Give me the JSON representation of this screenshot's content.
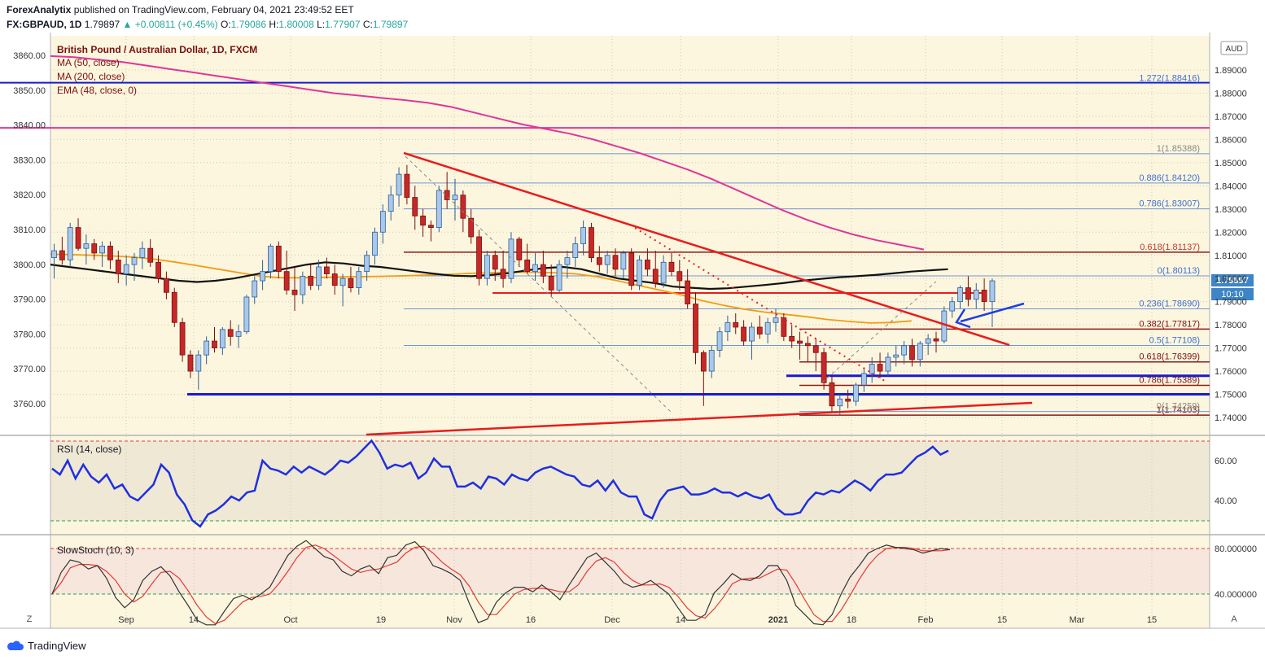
{
  "header": {
    "publisher": "ForexAnalytix",
    "published_text": "published on TradingView.com, February 04, 2021 23:49:52 EET",
    "symbol": "FX:GBPAUD, 1D",
    "last": "1.79897",
    "change": "+0.00811 (+0.45%)",
    "o_label": "O:",
    "o": "1.79086",
    "h_label": "H:",
    "h": "1.80008",
    "l_label": "L:",
    "l": "1.77907",
    "c_label": "C:",
    "c": "1.79897"
  },
  "legend": {
    "title": "British Pound / Australian Dollar, 1D, FXCM",
    "ma50": "MA (50, close)",
    "ma200": "MA (200, close)",
    "ema48": "EMA (48, close, 0)",
    "rsi": "RSI (14, close)",
    "stoch": "SlowStoch (10, 3)"
  },
  "axis": {
    "currency": "AUD",
    "price_badge": "1.79897",
    "time_badge": "10:10",
    "left_ticks": [
      "3860.00",
      "3850.00",
      "3840.00",
      "3830.00",
      "3820.00",
      "3810.00",
      "3800.00",
      "3790.00",
      "3780.00",
      "3770.00",
      "3760.00"
    ],
    "right_ticks": [
      "1.89000",
      "1.88000",
      "1.87000",
      "1.86000",
      "1.85000",
      "1.84000",
      "1.83000",
      "1.82000",
      "1.81000",
      "1.80000",
      "1.79000",
      "1.78000",
      "1.77000",
      "1.76000",
      "1.75000",
      "1.74000"
    ],
    "rsi_ticks": [
      "60.00",
      "40.00"
    ],
    "stoch_ticks": [
      "80.000000",
      "40.000000"
    ],
    "x_labels": [
      "Sep",
      "14",
      "Oct",
      "19",
      "Nov",
      "16",
      "Dec",
      "14",
      "2021",
      "18",
      "Feb",
      "15",
      "Mar",
      "15"
    ],
    "corner_left": "Z",
    "corner_right": "A"
  },
  "fib_labels": [
    "1.272(1.88416)",
    "1(1.85388)",
    "0.886(1.84120)",
    "0.786(1.83007)",
    "0.618(1.81137)",
    "0(1.80113)",
    "0.236(1.78690)",
    "0.382(1.77817)",
    "0.5(1.77108)",
    "0.618(1.76399)",
    "0.786(1.75389)",
    "1(1.74103)",
    "0(1.74259)"
  ],
  "chart_data": {
    "type": "candlestick",
    "title": "British Pound / Australian Dollar, 1D, FXCM",
    "ylim": [
      1.7365,
      1.905
    ],
    "last_close": 1.79897,
    "fib_levels": [
      1.88416,
      1.85388,
      1.8412,
      1.83007,
      1.81137,
      1.80113,
      1.7869,
      1.77817,
      1.77108,
      1.76399,
      1.75389,
      1.74103,
      1.74259
    ],
    "horizontal_levels": [
      1.8845,
      1.865,
      1.75,
      1.758
    ],
    "ohlc": [
      [
        1.809,
        1.815,
        1.8,
        1.812
      ],
      [
        1.812,
        1.818,
        1.806,
        1.808
      ],
      [
        1.808,
        1.824,
        1.805,
        1.822
      ],
      [
        1.822,
        1.826,
        1.812,
        1.813
      ],
      [
        1.813,
        1.819,
        1.806,
        1.815
      ],
      [
        1.815,
        1.817,
        1.808,
        1.811
      ],
      [
        1.811,
        1.816,
        1.805,
        1.814
      ],
      [
        1.814,
        1.816,
        1.804,
        1.808
      ],
      [
        1.808,
        1.812,
        1.798,
        1.802
      ],
      [
        1.802,
        1.81,
        1.797,
        1.806
      ],
      [
        1.806,
        1.811,
        1.799,
        1.809
      ],
      [
        1.809,
        1.816,
        1.804,
        1.813
      ],
      [
        1.813,
        1.817,
        1.805,
        1.807
      ],
      [
        1.807,
        1.81,
        1.798,
        1.8
      ],
      [
        1.8,
        1.803,
        1.791,
        1.794
      ],
      [
        1.794,
        1.796,
        1.779,
        1.781
      ],
      [
        1.781,
        1.783,
        1.764,
        1.767
      ],
      [
        1.767,
        1.769,
        1.757,
        1.76
      ],
      [
        1.76,
        1.769,
        1.752,
        1.767
      ],
      [
        1.767,
        1.775,
        1.763,
        1.773
      ],
      [
        1.773,
        1.779,
        1.768,
        1.77
      ],
      [
        1.77,
        1.779,
        1.767,
        1.778
      ],
      [
        1.778,
        1.782,
        1.771,
        1.775
      ],
      [
        1.775,
        1.78,
        1.77,
        1.777
      ],
      [
        1.777,
        1.793,
        1.776,
        1.792
      ],
      [
        1.792,
        1.801,
        1.789,
        1.799
      ],
      [
        1.799,
        1.808,
        1.795,
        1.803
      ],
      [
        1.803,
        1.815,
        1.8,
        1.814
      ],
      [
        1.814,
        1.816,
        1.8,
        1.803
      ],
      [
        1.803,
        1.812,
        1.793,
        1.795
      ],
      [
        1.795,
        1.805,
        1.786,
        1.793
      ],
      [
        1.793,
        1.803,
        1.789,
        1.801
      ],
      [
        1.801,
        1.806,
        1.795,
        1.797
      ],
      [
        1.797,
        1.808,
        1.795,
        1.805
      ],
      [
        1.805,
        1.809,
        1.8,
        1.802
      ],
      [
        1.802,
        1.806,
        1.793,
        1.797
      ],
      [
        1.797,
        1.802,
        1.788,
        1.8
      ],
      [
        1.8,
        1.805,
        1.794,
        1.796
      ],
      [
        1.796,
        1.805,
        1.793,
        1.803
      ],
      [
        1.803,
        1.812,
        1.799,
        1.81
      ],
      [
        1.81,
        1.822,
        1.806,
        1.82
      ],
      [
        1.82,
        1.832,
        1.815,
        1.829
      ],
      [
        1.829,
        1.84,
        1.825,
        1.836
      ],
      [
        1.836,
        1.848,
        1.831,
        1.845
      ],
      [
        1.845,
        1.849,
        1.832,
        1.835
      ],
      [
        1.835,
        1.84,
        1.821,
        1.827
      ],
      [
        1.827,
        1.83,
        1.818,
        1.823
      ],
      [
        1.823,
        1.825,
        1.816,
        1.822
      ],
      [
        1.822,
        1.84,
        1.82,
        1.838
      ],
      [
        1.838,
        1.846,
        1.83,
        1.834
      ],
      [
        1.834,
        1.843,
        1.825,
        1.836
      ],
      [
        1.836,
        1.838,
        1.82,
        1.826
      ],
      [
        1.826,
        1.83,
        1.815,
        1.818
      ],
      [
        1.818,
        1.821,
        1.797,
        1.8
      ],
      [
        1.8,
        1.812,
        1.797,
        1.81
      ],
      [
        1.81,
        1.812,
        1.799,
        1.804
      ],
      [
        1.804,
        1.812,
        1.796,
        1.8
      ],
      [
        1.8,
        1.82,
        1.798,
        1.817
      ],
      [
        1.817,
        1.818,
        1.805,
        1.808
      ],
      [
        1.808,
        1.815,
        1.802,
        1.803
      ],
      [
        1.803,
        1.811,
        1.799,
        1.806
      ],
      [
        1.806,
        1.812,
        1.798,
        1.801
      ],
      [
        1.801,
        1.806,
        1.792,
        1.795
      ],
      [
        1.795,
        1.808,
        1.794,
        1.806
      ],
      [
        1.806,
        1.812,
        1.8,
        1.809
      ],
      [
        1.809,
        1.818,
        1.805,
        1.815
      ],
      [
        1.815,
        1.825,
        1.81,
        1.822
      ],
      [
        1.822,
        1.824,
        1.807,
        1.809
      ],
      [
        1.809,
        1.814,
        1.803,
        1.806
      ],
      [
        1.806,
        1.812,
        1.802,
        1.81
      ],
      [
        1.81,
        1.813,
        1.801,
        1.804
      ],
      [
        1.804,
        1.812,
        1.8,
        1.811
      ],
      [
        1.811,
        1.813,
        1.795,
        1.797
      ],
      [
        1.797,
        1.81,
        1.795,
        1.808
      ],
      [
        1.808,
        1.813,
        1.801,
        1.804
      ],
      [
        1.804,
        1.812,
        1.796,
        1.798
      ],
      [
        1.798,
        1.81,
        1.796,
        1.807
      ],
      [
        1.807,
        1.811,
        1.801,
        1.803
      ],
      [
        1.803,
        1.808,
        1.795,
        1.799
      ],
      [
        1.799,
        1.804,
        1.787,
        1.789
      ],
      [
        1.789,
        1.794,
        1.763,
        1.768
      ],
      [
        1.768,
        1.769,
        1.745,
        1.76
      ],
      [
        1.76,
        1.771,
        1.757,
        1.769
      ],
      [
        1.769,
        1.779,
        1.766,
        1.777
      ],
      [
        1.777,
        1.784,
        1.773,
        1.781
      ],
      [
        1.781,
        1.785,
        1.776,
        1.779
      ],
      [
        1.779,
        1.782,
        1.771,
        1.773
      ],
      [
        1.773,
        1.781,
        1.765,
        1.779
      ],
      [
        1.779,
        1.784,
        1.774,
        1.776
      ],
      [
        1.776,
        1.783,
        1.772,
        1.781
      ],
      [
        1.781,
        1.787,
        1.777,
        1.783
      ],
      [
        1.783,
        1.785,
        1.773,
        1.775
      ],
      [
        1.775,
        1.78,
        1.77,
        1.773
      ],
      [
        1.773,
        1.777,
        1.765,
        1.772
      ],
      [
        1.772,
        1.775,
        1.764,
        1.771
      ],
      [
        1.771,
        1.774,
        1.76,
        1.768
      ],
      [
        1.768,
        1.77,
        1.752,
        1.755
      ],
      [
        1.755,
        1.758,
        1.742,
        1.745
      ],
      [
        1.745,
        1.75,
        1.741,
        1.748
      ],
      [
        1.748,
        1.752,
        1.744,
        1.747
      ],
      [
        1.747,
        1.755,
        1.745,
        1.754
      ],
      [
        1.754,
        1.761,
        1.751,
        1.759
      ],
      [
        1.759,
        1.766,
        1.755,
        1.763
      ],
      [
        1.763,
        1.768,
        1.757,
        1.76
      ],
      [
        1.76,
        1.768,
        1.758,
        1.766
      ],
      [
        1.766,
        1.771,
        1.762,
        1.767
      ],
      [
        1.767,
        1.773,
        1.763,
        1.771
      ],
      [
        1.771,
        1.774,
        1.762,
        1.765
      ],
      [
        1.765,
        1.773,
        1.762,
        1.772
      ],
      [
        1.772,
        1.776,
        1.767,
        1.774
      ],
      [
        1.774,
        1.777,
        1.768,
        1.773
      ],
      [
        1.773,
        1.788,
        1.772,
        1.786
      ],
      [
        1.786,
        1.792,
        1.783,
        1.79
      ],
      [
        1.79,
        1.797,
        1.787,
        1.796
      ],
      [
        1.796,
        1.801,
        1.788,
        1.791
      ],
      [
        1.791,
        1.798,
        1.787,
        1.795
      ],
      [
        1.795,
        1.8,
        1.786,
        1.79
      ],
      [
        1.79,
        1.8,
        1.779,
        1.799
      ]
    ],
    "ma50": [
      1.806,
      1.805,
      1.804,
      1.803,
      1.802,
      1.801,
      1.8,
      1.799,
      1.7985,
      1.799,
      1.8,
      1.8015,
      1.803,
      1.8045,
      1.806,
      1.807,
      1.8065,
      1.8055,
      1.805,
      1.804,
      1.803,
      1.802,
      1.8012,
      1.801,
      1.8015,
      1.8023,
      1.8035,
      1.8045,
      1.805,
      1.804,
      1.802,
      1.8,
      1.799,
      1.798,
      1.7965,
      1.796,
      1.7955,
      1.7958,
      1.7965,
      1.7972,
      1.798,
      1.799,
      1.7998,
      1.8005,
      1.801,
      1.8015,
      1.8022,
      1.803,
      1.8035,
      1.804
    ],
    "ema48": [
      1.8105,
      1.8103,
      1.81,
      1.8097,
      1.8092,
      1.8083,
      1.807,
      1.8055,
      1.804,
      1.8025,
      1.801,
      1.8003,
      1.8003,
      1.8005,
      1.8007,
      1.8008,
      1.801,
      1.8012,
      1.8015,
      1.8018,
      1.8022,
      1.8025,
      1.8027,
      1.8027,
      1.8025,
      1.802,
      1.8008,
      1.799,
      1.797,
      1.795,
      1.793,
      1.7905,
      1.7885,
      1.7868,
      1.7855,
      1.7845,
      1.7835,
      1.7823,
      1.7815,
      1.7808,
      1.781,
      1.7817
    ],
    "ma200": [
      1.896,
      1.8955,
      1.8945,
      1.8935,
      1.892,
      1.8905,
      1.889,
      1.8875,
      1.886,
      1.8845,
      1.883,
      1.8815,
      1.88,
      1.879,
      1.878,
      1.877,
      1.8758,
      1.874,
      1.8715,
      1.869,
      1.8665,
      1.8645,
      1.8625,
      1.86,
      1.857,
      1.854,
      1.8505,
      1.847,
      1.843,
      1.8385,
      1.834,
      1.8295,
      1.8255,
      1.822,
      1.819,
      1.8165,
      1.8145,
      1.8125
    ],
    "rsi": [
      56,
      53,
      60,
      51,
      58,
      52,
      49,
      53,
      46,
      48,
      42,
      40,
      44,
      48,
      58,
      54,
      43,
      38,
      30,
      27,
      33,
      35,
      38,
      42,
      40,
      44,
      45,
      60,
      56,
      55,
      53,
      57,
      54,
      57,
      55,
      53,
      56,
      60,
      59,
      62,
      66,
      70,
      64,
      56,
      58,
      57,
      59,
      51,
      54,
      61,
      57,
      57,
      47,
      47,
      49,
      46,
      52,
      51,
      48,
      53,
      51,
      50,
      54,
      56,
      57,
      55,
      53,
      52,
      48,
      47,
      50,
      45,
      50,
      44,
      42,
      42,
      33,
      31,
      40,
      45,
      46,
      47,
      43,
      43,
      44,
      46,
      44,
      44,
      42,
      44,
      42,
      41,
      43,
      36,
      33,
      33,
      34,
      40,
      44,
      43,
      45,
      44,
      47,
      50,
      48,
      45,
      50,
      53,
      53,
      54,
      58,
      62,
      64,
      67,
      63,
      65
    ],
    "stoch_k": [
      40,
      59,
      70,
      68,
      62,
      65,
      54,
      37,
      28,
      35,
      52,
      60,
      64,
      56,
      42,
      30,
      17,
      13,
      13,
      25,
      36,
      39,
      35,
      40,
      46,
      60,
      74,
      82,
      87,
      80,
      73,
      70,
      60,
      56,
      62,
      65,
      58,
      72,
      74,
      83,
      86,
      78,
      65,
      62,
      58,
      52,
      32,
      15,
      18,
      33,
      41,
      46,
      46,
      42,
      48,
      42,
      35,
      48,
      60,
      72,
      76,
      68,
      60,
      50,
      46,
      48,
      52,
      46,
      40,
      28,
      17,
      17,
      22,
      41,
      49,
      58,
      53,
      52,
      56,
      65,
      65,
      52,
      30,
      22,
      14,
      13,
      22,
      40,
      55,
      65,
      76,
      80,
      83,
      81,
      80,
      79,
      76,
      78,
      80,
      79
    ],
    "stoch_d": [
      40,
      50,
      63,
      66,
      66,
      65,
      60,
      52,
      40,
      33,
      38,
      49,
      59,
      60,
      54,
      43,
      30,
      20,
      14,
      17,
      25,
      33,
      37,
      38,
      40,
      49,
      60,
      72,
      81,
      83,
      80,
      74,
      68,
      62,
      59,
      61,
      62,
      65,
      68,
      76,
      81,
      82,
      76,
      68,
      62,
      57,
      47,
      33,
      22,
      22,
      31,
      40,
      44,
      45,
      45,
      44,
      42,
      42,
      48,
      60,
      69,
      72,
      68,
      59,
      52,
      48,
      48,
      49,
      46,
      38,
      28,
      21,
      19,
      27,
      37,
      49,
      53,
      54,
      54,
      58,
      62,
      61,
      49,
      35,
      22,
      16,
      16,
      26,
      39,
      53,
      65,
      74,
      80,
      81,
      81,
      80,
      78,
      78,
      78,
      79
    ]
  }
}
